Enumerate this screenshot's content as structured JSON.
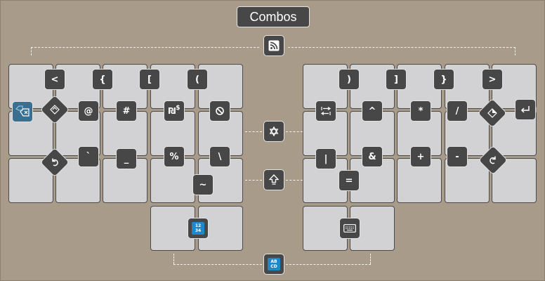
{
  "title": "Combos",
  "top_left_icon": "wifi-rss-icon",
  "mid_icon_1": "star-of-david-icon",
  "mid_icon_2": "shift-arrow-icon",
  "bottom_icon": {
    "name": "abcd-layer-icon",
    "text": "AB CD"
  },
  "numpad_icon": {
    "name": "numbers-layer-icon",
    "text": "12 34"
  },
  "left_symbols": {
    "less": "<",
    "lbrace": "{",
    "lbracket": "[",
    "lparen": "(",
    "at": "@",
    "hash": "#",
    "shekel_dollar_a": "₪",
    "shekel_dollar_b": "$",
    "backtick": "`",
    "underscore": "_",
    "percent": "%",
    "backslash": "\\",
    "tilde": "~"
  },
  "right_symbols": {
    "rparen": ")",
    "rbracket": "]",
    "rbrace": "}",
    "greater": ">",
    "caret": "^",
    "star": "*",
    "slash": "/",
    "pipe": "|",
    "amp": "&",
    "plus": "+",
    "minus": "-",
    "equals": "="
  },
  "colors": {
    "background": "#a89b89",
    "key": "#d2d2d4",
    "chip": "#474747",
    "accent_blue": "#1e88c8"
  }
}
